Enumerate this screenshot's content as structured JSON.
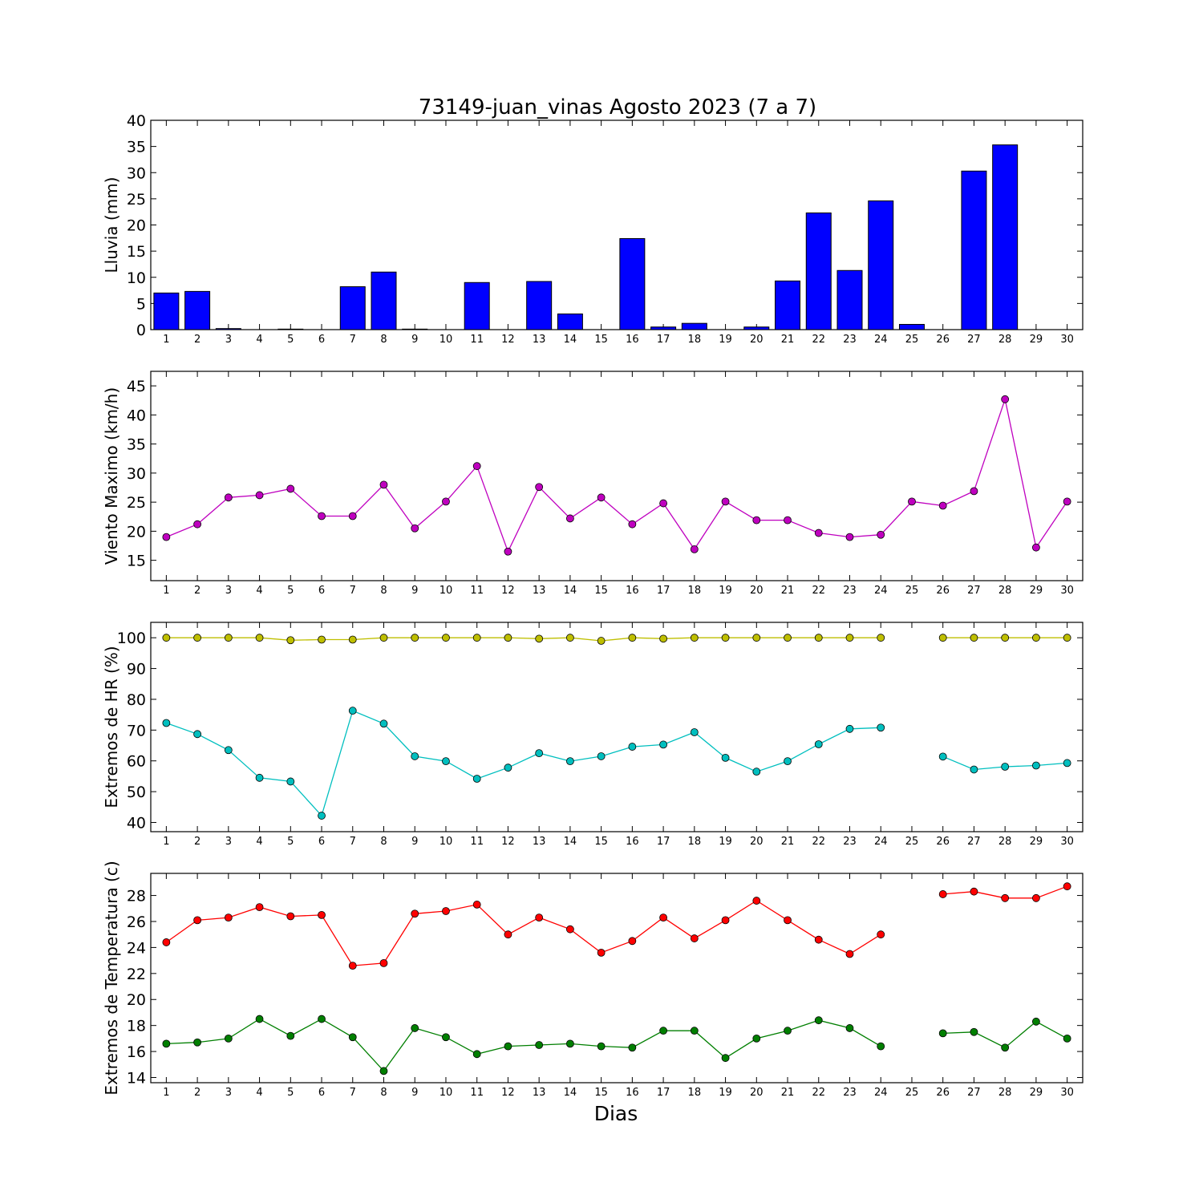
{
  "figure": {
    "title": "73149-juan_vinas Agosto 2023  (7 a 7)",
    "xlabel": "Dias"
  },
  "chart_data": [
    {
      "type": "bar",
      "ylabel": "Lluvia (mm)",
      "x": [
        1,
        2,
        3,
        4,
        5,
        6,
        7,
        8,
        9,
        10,
        11,
        12,
        13,
        14,
        15,
        16,
        17,
        18,
        19,
        20,
        21,
        22,
        23,
        24,
        25,
        26,
        27,
        28,
        29,
        30
      ],
      "ylim": [
        0,
        40
      ],
      "yticks": [
        0,
        5,
        10,
        15,
        20,
        25,
        30,
        35,
        40
      ],
      "series": [
        {
          "values": [
            7.0,
            7.3,
            0.2,
            0,
            0.1,
            0,
            8.2,
            11.0,
            0.1,
            0,
            9.0,
            0,
            9.2,
            3.0,
            0,
            17.4,
            0.5,
            1.2,
            0,
            0.5,
            9.3,
            22.3,
            11.3,
            24.6,
            1.0,
            0,
            30.3,
            35.3,
            0,
            0
          ],
          "color": "#0000ff"
        }
      ]
    },
    {
      "type": "line",
      "ylabel": "Viento Maximo (km/h)",
      "x": [
        1,
        2,
        3,
        4,
        5,
        6,
        7,
        8,
        9,
        10,
        11,
        12,
        13,
        14,
        15,
        16,
        17,
        18,
        19,
        20,
        21,
        22,
        23,
        24,
        25,
        26,
        27,
        28,
        29,
        30
      ],
      "ylim": [
        11.5,
        47.5
      ],
      "yticks": [
        15,
        20,
        25,
        30,
        35,
        40,
        45
      ],
      "series": [
        {
          "values": [
            19.0,
            21.2,
            25.8,
            26.2,
            27.3,
            22.6,
            22.6,
            28.0,
            20.5,
            25.1,
            31.2,
            16.5,
            27.6,
            22.2,
            25.8,
            21.2,
            24.8,
            16.9,
            25.1,
            21.9,
            21.9,
            19.7,
            19.0,
            19.4,
            25.1,
            24.4,
            26.9,
            42.7,
            17.2,
            25.1
          ],
          "color": "#bf00bf"
        }
      ]
    },
    {
      "type": "line",
      "ylabel": "Extremos de HR (%)",
      "x": [
        1,
        2,
        3,
        4,
        5,
        6,
        7,
        8,
        9,
        10,
        11,
        12,
        13,
        14,
        15,
        16,
        17,
        18,
        19,
        20,
        21,
        22,
        23,
        24,
        25,
        26,
        27,
        28,
        29,
        30
      ],
      "ylim": [
        37,
        105
      ],
      "yticks": [
        40,
        50,
        60,
        70,
        80,
        90,
        100
      ],
      "series": [
        {
          "values": [
            100,
            100,
            100,
            100,
            99.2,
            99.4,
            99.4,
            100,
            100,
            100,
            100,
            100,
            99.7,
            100,
            99.0,
            100,
            99.7,
            100,
            100,
            100,
            100,
            100,
            100,
            100,
            null,
            100,
            100,
            100,
            100,
            100
          ],
          "color": "#bfbf00"
        },
        {
          "values": [
            72.3,
            68.7,
            63.5,
            54.5,
            53.3,
            42.2,
            76.3,
            72.1,
            61.5,
            59.9,
            54.2,
            57.8,
            62.5,
            59.9,
            61.5,
            64.6,
            65.3,
            69.3,
            61.0,
            56.5,
            59.9,
            65.4,
            70.4,
            70.8,
            null,
            61.4,
            57.2,
            58.1,
            58.5,
            59.3
          ],
          "color": "#00bfbf"
        }
      ]
    },
    {
      "type": "line",
      "ylabel": "Extremos de Temperatura (c)",
      "x": [
        1,
        2,
        3,
        4,
        5,
        6,
        7,
        8,
        9,
        10,
        11,
        12,
        13,
        14,
        15,
        16,
        17,
        18,
        19,
        20,
        21,
        22,
        23,
        24,
        25,
        26,
        27,
        28,
        29,
        30
      ],
      "ylim": [
        13.6,
        29.7
      ],
      "yticks": [
        14,
        16,
        18,
        20,
        22,
        24,
        26,
        28
      ],
      "series": [
        {
          "values": [
            24.4,
            26.1,
            26.3,
            27.1,
            26.4,
            26.5,
            22.6,
            22.8,
            26.6,
            26.8,
            27.3,
            25.0,
            26.3,
            25.4,
            23.6,
            24.5,
            26.3,
            24.7,
            26.1,
            27.6,
            26.1,
            24.6,
            23.5,
            25.0,
            null,
            28.1,
            28.3,
            27.8,
            27.8,
            28.7
          ],
          "color": "#ff0000"
        },
        {
          "values": [
            16.6,
            16.7,
            17.0,
            18.5,
            17.2,
            18.5,
            17.1,
            14.5,
            17.8,
            17.1,
            15.8,
            16.4,
            16.5,
            16.6,
            16.4,
            16.3,
            17.6,
            17.6,
            15.5,
            17.0,
            17.6,
            18.4,
            17.8,
            16.4,
            null,
            17.4,
            17.5,
            16.3,
            18.3,
            17.0
          ],
          "color": "#007f00"
        }
      ]
    }
  ]
}
